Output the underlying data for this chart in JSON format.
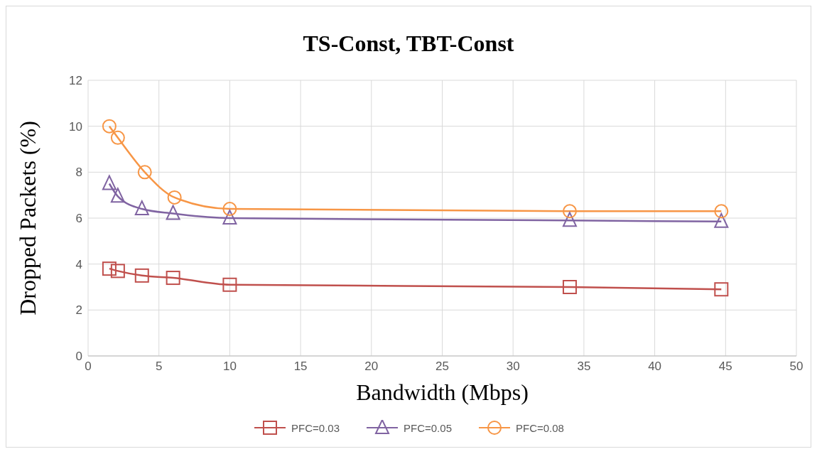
{
  "chart_data": {
    "type": "line",
    "title": "TS-Const, TBT-Const",
    "xlabel": "Bandwidth (Mbps)",
    "ylabel": "Dropped Packets (%)",
    "xlim": [
      0,
      50
    ],
    "xticks": [
      0,
      5,
      10,
      15,
      20,
      25,
      30,
      35,
      40,
      45,
      50
    ],
    "ylim": [
      0,
      12
    ],
    "yticks": [
      0,
      2,
      4,
      6,
      8,
      10,
      12
    ],
    "grid": true,
    "legend": "bottom",
    "line_style": "solid",
    "series": [
      {
        "name": "PFC=0.03",
        "color": "#c0504d",
        "marker": "square",
        "x": [
          1.5,
          2.1,
          3.8,
          6,
          10,
          34,
          44.7
        ],
        "values": [
          3.8,
          3.7,
          3.5,
          3.4,
          3.1,
          3.0,
          2.9
        ]
      },
      {
        "name": "PFC=0.05",
        "color": "#8064a2",
        "marker": "triangle",
        "x": [
          1.5,
          2.1,
          3.8,
          6,
          10,
          34,
          44.7
        ],
        "values": [
          7.5,
          6.95,
          6.4,
          6.2,
          6.0,
          5.9,
          5.85
        ]
      },
      {
        "name": "PFC=0.08",
        "color": "#f79646",
        "marker": "circle",
        "x": [
          1.5,
          2.1,
          4,
          6.1,
          10,
          34,
          44.7
        ],
        "values": [
          10.0,
          9.5,
          8.0,
          6.9,
          6.4,
          6.3,
          6.3
        ]
      }
    ]
  }
}
